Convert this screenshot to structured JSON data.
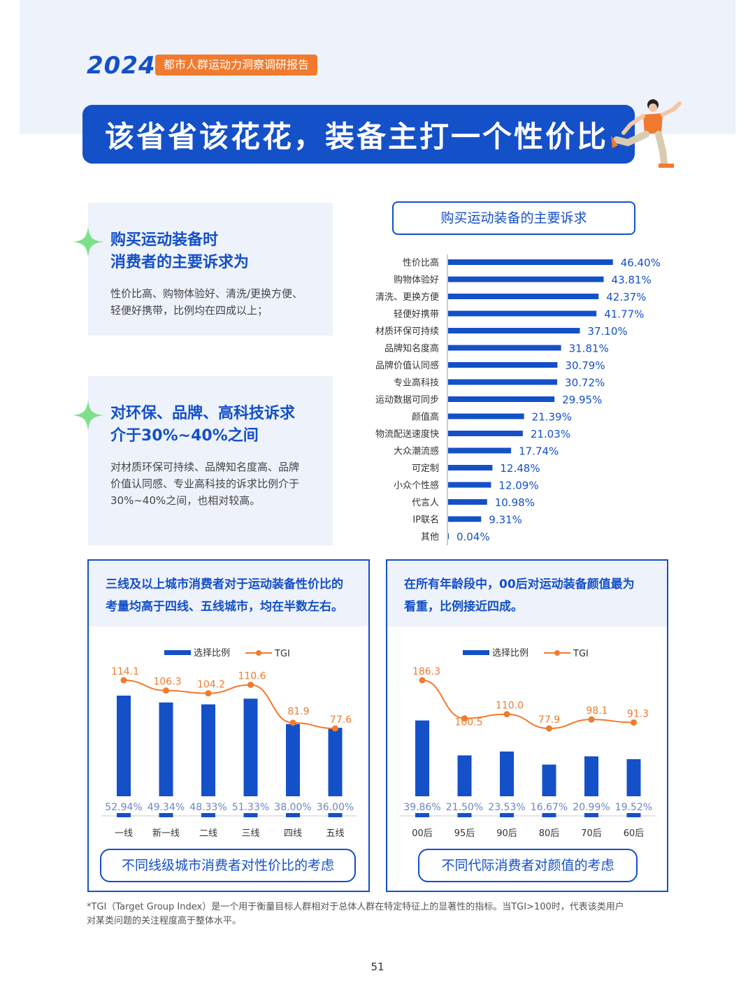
{
  "header": {
    "year": "2024",
    "tag": "都市人群运动力洞察调研报告",
    "title": "该省省该花花，装备主打一个性价比"
  },
  "colors": {
    "blue": "#1450c8",
    "orange": "#f07a2e",
    "panel_bg": "#eef2fb"
  },
  "card1": {
    "heading_line1": "购买运动装备时",
    "heading_line2": "消费者的主要诉求为",
    "body_line1": "性价比高、购物体验好、清洗/更换方便、",
    "body_line2": "轻便好携带，比例均在四成以上；"
  },
  "card2": {
    "heading_line1": "对环保、品牌、高科技诉求",
    "heading_line2": "介于30%~40%之间",
    "body_line1": "对材质环保可持续、品牌知名度高、品牌",
    "body_line2": "价值认同感、专业高科技的诉求比例介于",
    "body_line3": "30%~40%之间，也相对较高。"
  },
  "chart_data": [
    {
      "type": "bar",
      "orientation": "horizontal",
      "title": "购买运动装备的主要诉求",
      "categories": [
        "性价比高",
        "购物体验好",
        "清洗、更换方便",
        "轻便好携带",
        "材质环保可持续",
        "品牌知名度高",
        "品牌价值认同感",
        "专业高科技",
        "运动数据可同步",
        "颜值高",
        "物流配送速度快",
        "大众潮流感",
        "可定制",
        "小众个性感",
        "代言人",
        "IP联名",
        "其他"
      ],
      "values": [
        46.4,
        43.81,
        42.37,
        41.77,
        37.1,
        31.81,
        30.79,
        30.72,
        29.95,
        21.39,
        21.03,
        17.74,
        12.48,
        12.09,
        10.98,
        9.31,
        0.04
      ],
      "value_labels": [
        "46.40%",
        "43.81%",
        "42.37%",
        "41.77%",
        "37.10%",
        "31.81%",
        "30.79%",
        "30.72%",
        "29.95%",
        "21.39%",
        "21.03%",
        "17.74%",
        "12.48%",
        "12.09%",
        "10.98%",
        "9.31%",
        "0.04%"
      ]
    },
    {
      "type": "bar+line",
      "title": "不同线级城市消费者对性价比的考虑",
      "panel_text": "三线及以上城市消费者对于运动装备性价比的考量均高于四线、五线城市，均在半数左右。",
      "legend": [
        "选择比例",
        "TGI"
      ],
      "categories": [
        "一线",
        "新一线",
        "二线",
        "三线",
        "四线",
        "五线"
      ],
      "series": [
        {
          "name": "选择比例",
          "values": [
            52.94,
            49.34,
            48.33,
            51.33,
            38.0,
            36.0
          ],
          "labels": [
            "52.94%",
            "49.34%",
            "48.33%",
            "51.33%",
            "38.00%",
            "36.00%"
          ]
        },
        {
          "name": "TGI",
          "values": [
            114.1,
            106.3,
            104.2,
            110.6,
            81.9,
            77.6
          ],
          "labels": [
            "114.1",
            "106.3",
            "104.2",
            "110.6",
            "81.9",
            "77.6"
          ]
        }
      ]
    },
    {
      "type": "bar+line",
      "title": "不同代际消费者对颜值的考虑",
      "panel_text": "在所有年龄段中，00后对运动装备颜值最为看重，比例接近四成。",
      "legend": [
        "选择比例",
        "TGI"
      ],
      "categories": [
        "00后",
        "95后",
        "90后",
        "80后",
        "70后",
        "60后"
      ],
      "series": [
        {
          "name": "选择比例",
          "values": [
            39.86,
            21.5,
            23.53,
            16.67,
            20.99,
            19.52
          ],
          "labels": [
            "39.86%",
            "21.50%",
            "23.53%",
            "16.67%",
            "20.99%",
            "19.52%"
          ]
        },
        {
          "name": "TGI",
          "values": [
            186.3,
            100.5,
            110.0,
            77.9,
            98.1,
            91.3
          ],
          "labels": [
            "186.3",
            "100.5",
            "110.0",
            "77.9",
            "98.1",
            "91.3"
          ]
        }
      ]
    }
  ],
  "panel_left": {
    "line1": "三线及以上城市消费者对于运动装备性价比的",
    "line2": "考量均高于四线、五线城市，均在半数左右。",
    "caption": "不同线级城市消费者对性价比的考虑"
  },
  "panel_right": {
    "line1": "在所有年龄段中，00后对运动装备颜值最为",
    "line2": "看重，比例接近四成。",
    "caption": "不同代际消费者对颜值的考虑"
  },
  "footnote": {
    "line1": "*TGI（Target Group Index）是一个用于衡量目标人群相对于总体人群在特定特征上的显著性的指标。当TGI>100时，代表该类用户",
    "line2": "对某类问题的关注程度高于整体水平。"
  },
  "page_number": "51"
}
